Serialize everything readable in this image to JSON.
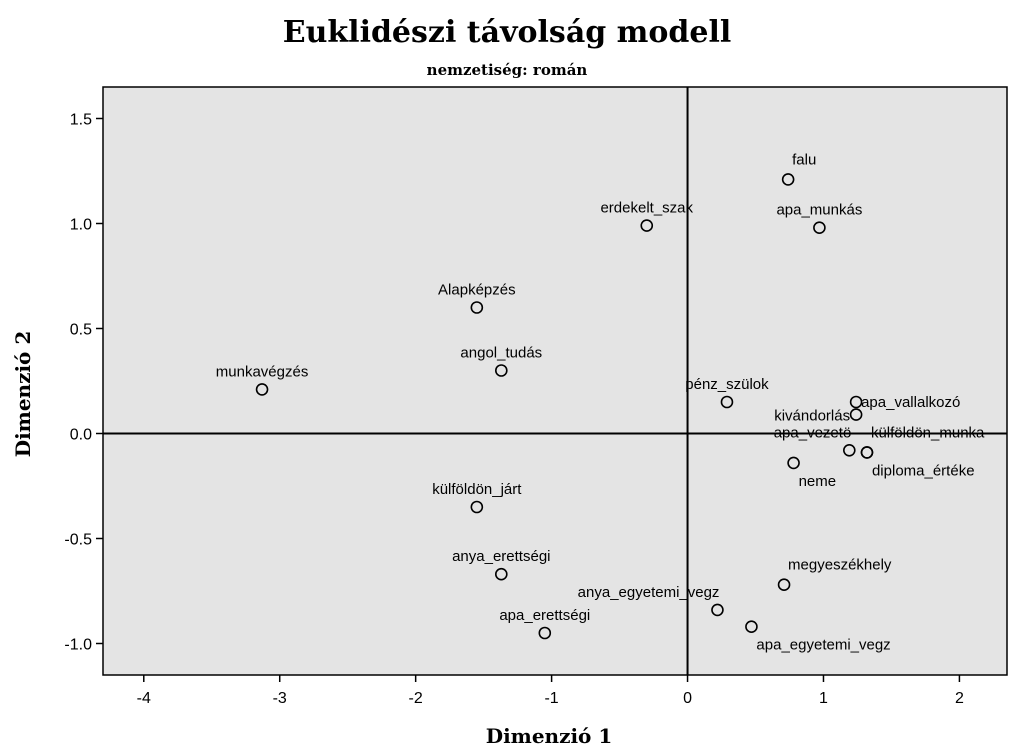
{
  "chart_data": {
    "type": "scatter",
    "title": "Euklidészi távolság modell",
    "subtitle": "nemzetiség: román",
    "xlabel": "Dimenzió 1",
    "ylabel": "Dimenzió 2",
    "xlim": [
      -4.3,
      2.35
    ],
    "ylim": [
      -1.15,
      1.65
    ],
    "xticks": [
      -4,
      -3,
      -2,
      -1,
      0,
      1,
      2
    ],
    "xtick_labels": [
      "-4",
      "-3",
      "-2",
      "-1",
      "0",
      "1",
      "2"
    ],
    "yticks": [
      -1.0,
      -0.5,
      0.0,
      0.5,
      1.0,
      1.5
    ],
    "ytick_labels": [
      "-1.0",
      "-0.5",
      "0.0",
      "0.5",
      "1.0",
      "1.5"
    ],
    "reference_lines": {
      "x": 0,
      "y": 0
    },
    "background": "#e4e4e4",
    "points": [
      {
        "label": "falu",
        "x": 0.74,
        "y": 1.21,
        "anchor": "above-right"
      },
      {
        "label": "erdekelt_szak",
        "x": -0.3,
        "y": 0.99,
        "anchor": "above"
      },
      {
        "label": "apa_munkás",
        "x": 0.97,
        "y": 0.98,
        "anchor": "above"
      },
      {
        "label": "Alapképzés",
        "x": -1.55,
        "y": 0.6,
        "anchor": "above"
      },
      {
        "label": "angol_tudás",
        "x": -1.37,
        "y": 0.3,
        "anchor": "above"
      },
      {
        "label": "munkavégzés",
        "x": -3.13,
        "y": 0.21,
        "anchor": "above"
      },
      {
        "label": "pénz_szülok",
        "x": 0.29,
        "y": 0.15,
        "anchor": "above"
      },
      {
        "label": "apa_vallalkozó",
        "x": 1.24,
        "y": 0.15,
        "anchor": "right"
      },
      {
        "label": "kivándorlás",
        "x": 1.24,
        "y": 0.09,
        "anchor": "left"
      },
      {
        "label": "külföldön_munka",
        "x": 1.32,
        "y": -0.09,
        "anchor": "above-right"
      },
      {
        "label": "apa_vezetö",
        "x": 1.19,
        "y": -0.08,
        "anchor": "above-left"
      },
      {
        "label": "diploma_értéke",
        "x": 1.32,
        "y": -0.09,
        "anchor": "below-right"
      },
      {
        "label": "neme",
        "x": 0.78,
        "y": -0.14,
        "anchor": "below-right"
      },
      {
        "label": "külföldön_járt",
        "x": -1.55,
        "y": -0.35,
        "anchor": "above"
      },
      {
        "label": "anya_erettségi",
        "x": -1.37,
        "y": -0.67,
        "anchor": "above"
      },
      {
        "label": "megyeszékhely",
        "x": 0.71,
        "y": -0.72,
        "anchor": "above-right"
      },
      {
        "label": "anya_egyetemi_vegz",
        "x": 0.22,
        "y": -0.84,
        "anchor": "above-left"
      },
      {
        "label": "apa_egyetemi_vegz",
        "x": 0.47,
        "y": -0.92,
        "anchor": "below-right"
      },
      {
        "label": "apa_erettségi",
        "x": -1.05,
        "y": -0.95,
        "anchor": "above"
      }
    ]
  }
}
